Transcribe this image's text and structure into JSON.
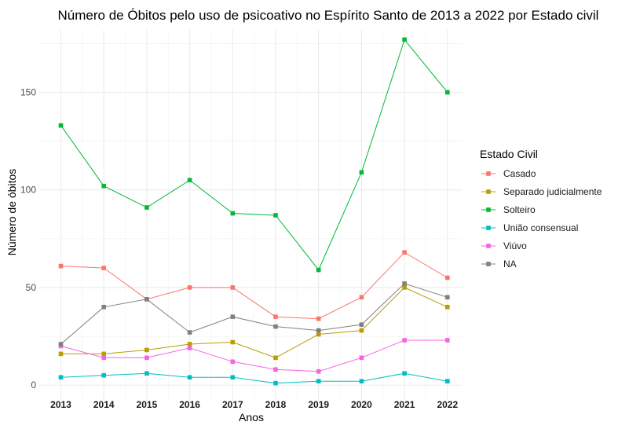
{
  "chart_data": {
    "type": "line",
    "title": "Número de Óbitos pelo uso de psicoativo no Espírito Santo de 2013 a 2022 por Estado civil",
    "xlabel": "Anos",
    "ylabel": "Número de óbitos",
    "x": [
      "2013",
      "2014",
      "2015",
      "2016",
      "2017",
      "2018",
      "2019",
      "2020",
      "2021",
      "2022"
    ],
    "y_ticks": [
      "0",
      "50",
      "100",
      "150"
    ],
    "ylim": [
      -8,
      182
    ],
    "grid": true,
    "legend": {
      "title": "Estado Civil",
      "position": "right"
    },
    "series": [
      {
        "name": "Casado",
        "color": "#F8766D",
        "values": [
          61,
          60,
          44,
          50,
          50,
          35,
          34,
          45,
          68,
          55
        ]
      },
      {
        "name": "Separado judicialmente",
        "color": "#B79F00",
        "values": [
          16,
          16,
          18,
          21,
          22,
          14,
          26,
          28,
          50,
          40
        ]
      },
      {
        "name": "Solteiro",
        "color": "#00BA38",
        "values": [
          133,
          102,
          91,
          105,
          88,
          87,
          59,
          109,
          177,
          150
        ]
      },
      {
        "name": "União consensual",
        "color": "#00BFC4",
        "values": [
          4,
          5,
          6,
          4,
          4,
          1,
          2,
          2,
          6,
          2
        ]
      },
      {
        "name": "Viúvo",
        "color": "#F564E3",
        "values": [
          20,
          14,
          14,
          19,
          12,
          8,
          7,
          14,
          23,
          23
        ]
      },
      {
        "name": "NA",
        "color": "#808080",
        "values": [
          21,
          40,
          44,
          27,
          35,
          30,
          28,
          31,
          52,
          45
        ]
      }
    ]
  }
}
